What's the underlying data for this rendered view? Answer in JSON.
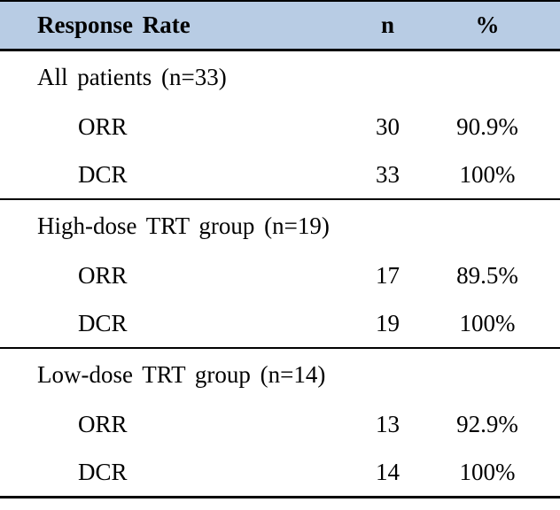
{
  "table": {
    "columns": [
      "Response Rate",
      "n",
      "%"
    ],
    "sections": [
      {
        "label": "All patients (n=33)",
        "rows": [
          {
            "label": "ORR",
            "n": "30",
            "pct": "90.9%"
          },
          {
            "label": "DCR",
            "n": "33",
            "pct": "100%"
          }
        ]
      },
      {
        "label": "High-dose TRT group (n=19)",
        "rows": [
          {
            "label": "ORR",
            "n": "17",
            "pct": "89.5%"
          },
          {
            "label": "DCR",
            "n": "19",
            "pct": "100%"
          }
        ]
      },
      {
        "label": "Low-dose TRT group (n=14)",
        "rows": [
          {
            "label": "ORR",
            "n": "13",
            "pct": "92.9%"
          },
          {
            "label": "DCR",
            "n": "14",
            "pct": "100%"
          }
        ]
      }
    ],
    "colors": {
      "header_background": "#b8cce4",
      "rule_color": "#000000",
      "text_color": "#000000"
    }
  }
}
